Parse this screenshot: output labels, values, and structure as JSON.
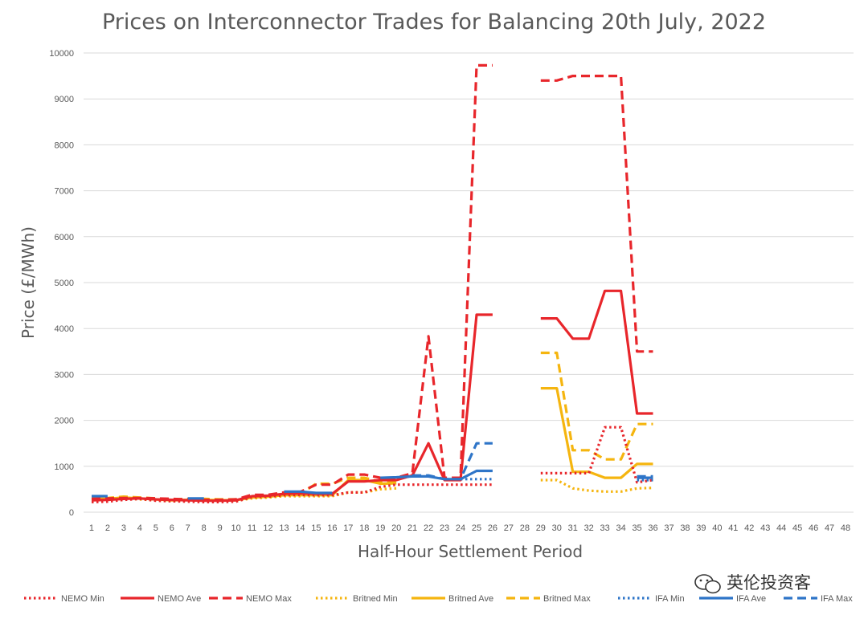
{
  "chart_data": {
    "type": "line",
    "title": "Prices on Interconnector Trades for Balancing 20th July, 2022",
    "xlabel": "Half-Hour Settlement Period",
    "ylabel": "Price (£/MWh)",
    "ylim": [
      0,
      10000
    ],
    "yticks": [
      0,
      1000,
      2000,
      3000,
      4000,
      5000,
      6000,
      7000,
      8000,
      9000,
      10000
    ],
    "categories": [
      "1",
      "2",
      "3",
      "4",
      "5",
      "6",
      "7",
      "8",
      "9",
      "10",
      "11",
      "12",
      "13",
      "14",
      "15",
      "16",
      "17",
      "18",
      "19",
      "20",
      "21",
      "22",
      "23",
      "24",
      "25",
      "26",
      "27",
      "28",
      "29",
      "30",
      "31",
      "32",
      "33",
      "34",
      "35",
      "36",
      "37",
      "38",
      "39",
      "40",
      "41",
      "42",
      "43",
      "44",
      "45",
      "46",
      "47",
      "48"
    ],
    "grid": "horizontal",
    "legend_position": "bottom",
    "series": [
      {
        "name": "NEMO Min",
        "color": "#e8262b",
        "dash": "dot",
        "values": [
          220,
          230,
          270,
          290,
          250,
          240,
          230,
          220,
          220,
          230,
          330,
          340,
          370,
          380,
          370,
          370,
          430,
          430,
          550,
          600,
          600,
          600,
          600,
          600,
          600,
          600,
          null,
          null,
          850,
          850,
          850,
          850,
          1850,
          1850,
          650,
          700,
          null,
          null,
          null,
          null,
          null,
          null,
          null,
          null,
          null,
          null,
          null,
          null
        ]
      },
      {
        "name": "NEMO Ave",
        "color": "#e8262b",
        "dash": "solid",
        "values": [
          260,
          270,
          290,
          300,
          280,
          270,
          260,
          250,
          250,
          260,
          350,
          360,
          400,
          410,
          400,
          400,
          670,
          670,
          700,
          700,
          800,
          1500,
          700,
          700,
          4300,
          4300,
          null,
          null,
          4220,
          4220,
          3780,
          3780,
          4820,
          4820,
          2150,
          2150,
          null,
          null,
          null,
          null,
          null,
          null,
          null,
          null,
          null,
          null,
          null,
          null
        ]
      },
      {
        "name": "NEMO Max",
        "color": "#e8262b",
        "dash": "dash",
        "values": [
          290,
          300,
          310,
          310,
          300,
          290,
          280,
          270,
          270,
          280,
          380,
          380,
          430,
          440,
          600,
          600,
          820,
          820,
          750,
          750,
          850,
          3830,
          750,
          750,
          9730,
          9730,
          null,
          null,
          9400,
          9400,
          9500,
          9500,
          9500,
          9500,
          3500,
          3500,
          null,
          null,
          null,
          null,
          null,
          null,
          null,
          null,
          null,
          null,
          null,
          null
        ]
      },
      {
        "name": "Britned Min",
        "color": "#f5b50f",
        "dash": "dot",
        "values": [
          280,
          270,
          300,
          280,
          260,
          240,
          250,
          250,
          250,
          250,
          300,
          320,
          350,
          350,
          350,
          350,
          430,
          430,
          500,
          520,
          null,
          null,
          null,
          null,
          null,
          null,
          null,
          null,
          700,
          700,
          520,
          470,
          450,
          450,
          520,
          530,
          null,
          null,
          null,
          null,
          null,
          null,
          null,
          null,
          null,
          null,
          null,
          null
        ]
      },
      {
        "name": "Britned Ave",
        "color": "#f5b50f",
        "dash": "solid",
        "values": [
          300,
          290,
          320,
          300,
          280,
          260,
          270,
          270,
          260,
          260,
          320,
          340,
          370,
          370,
          370,
          370,
          700,
          700,
          620,
          630,
          null,
          null,
          null,
          null,
          null,
          null,
          null,
          null,
          2700,
          2700,
          880,
          880,
          750,
          750,
          1050,
          1050,
          null,
          null,
          null,
          null,
          null,
          null,
          null,
          null,
          null,
          null,
          null,
          null
        ]
      },
      {
        "name": "Britned Max",
        "color": "#f5b50f",
        "dash": "dash",
        "values": [
          320,
          310,
          340,
          320,
          300,
          280,
          290,
          290,
          280,
          280,
          340,
          360,
          400,
          400,
          620,
          620,
          750,
          750,
          660,
          660,
          null,
          null,
          null,
          null,
          null,
          null,
          null,
          null,
          3470,
          3470,
          1350,
          1350,
          1150,
          1150,
          1920,
          1920,
          null,
          null,
          null,
          null,
          null,
          null,
          null,
          null,
          null,
          null,
          null,
          null
        ]
      },
      {
        "name": "IFA Min",
        "color": "#2e75c8",
        "dash": "dot",
        "values": [
          null,
          null,
          null,
          null,
          null,
          null,
          null,
          null,
          null,
          null,
          null,
          null,
          null,
          null,
          null,
          null,
          null,
          null,
          null,
          null,
          null,
          null,
          null,
          null,
          null,
          null,
          null,
          null,
          null,
          null,
          null,
          null,
          null,
          null,
          null,
          null,
          null,
          null,
          null,
          null,
          null,
          null,
          null,
          null,
          null,
          null,
          null,
          null
        ]
      },
      {
        "name": "IFA Ave",
        "color": "#2e75c8",
        "dash": "solid",
        "values": [
          350,
          350,
          null,
          null,
          null,
          null,
          300,
          300,
          null,
          null,
          null,
          null,
          450,
          450,
          420,
          420,
          null,
          null,
          750,
          760,
          780,
          780,
          720,
          720,
          900,
          900,
          null,
          null,
          null,
          null,
          null,
          null,
          null,
          null,
          750,
          750,
          null,
          null,
          null,
          null,
          null,
          null,
          null,
          null,
          null,
          null,
          null,
          null
        ]
      },
      {
        "name": "IFA Max",
        "color": "#2e75c8",
        "dash": "dash",
        "values": [
          null,
          null,
          null,
          null,
          null,
          null,
          null,
          null,
          null,
          null,
          null,
          null,
          null,
          null,
          null,
          null,
          null,
          null,
          null,
          null,
          800,
          800,
          720,
          720,
          1500,
          1500,
          null,
          null,
          null,
          null,
          null,
          null,
          null,
          null,
          780,
          780,
          null,
          null,
          null,
          null,
          null,
          null,
          null,
          null,
          null,
          null,
          null,
          null
        ]
      }
    ]
  },
  "extra_series_points": {
    "IFA Min": {
      "x": [
        24,
        25,
        26,
        35,
        36
      ],
      "values": [
        720,
        720,
        720,
        700,
        700
      ]
    }
  },
  "watermark": {
    "text": "英伦投资客",
    "icon": "wechat-icon"
  }
}
